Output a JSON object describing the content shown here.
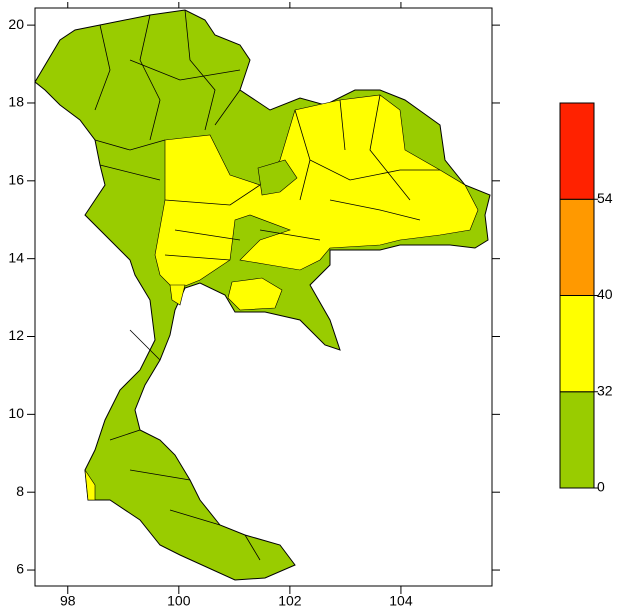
{
  "chart_data": {
    "type": "map",
    "xlim": [
      97.41,
      105.64
    ],
    "ylim": [
      5.59,
      20.44
    ],
    "xticks": [
      98,
      100,
      102,
      104
    ],
    "yticks": [
      6,
      8,
      10,
      12,
      14,
      16,
      18,
      20
    ],
    "colorbar": {
      "levels": [
        0,
        32,
        40,
        54
      ],
      "colors": [
        "#99cc00",
        "#ffff00",
        "#ff9900",
        "#ff2200"
      ]
    }
  }
}
